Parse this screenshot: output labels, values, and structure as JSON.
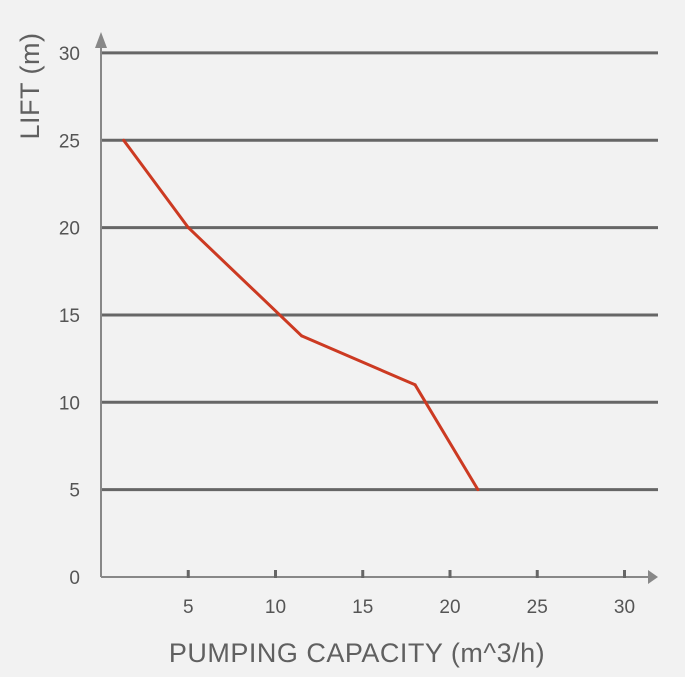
{
  "chart_data": {
    "type": "line",
    "title": "",
    "xlabel": "PUMPING CAPACITY (m^3/h)",
    "ylabel": "LIFT (m)",
    "xlim": [
      0,
      30
    ],
    "ylim": [
      0,
      30
    ],
    "x_ticks": [
      5,
      10,
      15,
      20,
      25,
      30
    ],
    "y_ticks": [
      0,
      5,
      10,
      15,
      20,
      25,
      30
    ],
    "grid": "horizontal",
    "series": [
      {
        "x": [
          1.3,
          5,
          11.5,
          18,
          21.6
        ],
        "y": [
          25,
          20,
          13.8,
          11,
          5
        ]
      }
    ],
    "colors": {
      "background": "#f2f2f2",
      "grid": "#666666",
      "axis": "#888888",
      "line": "#cc3a22",
      "text": "#555555"
    }
  }
}
